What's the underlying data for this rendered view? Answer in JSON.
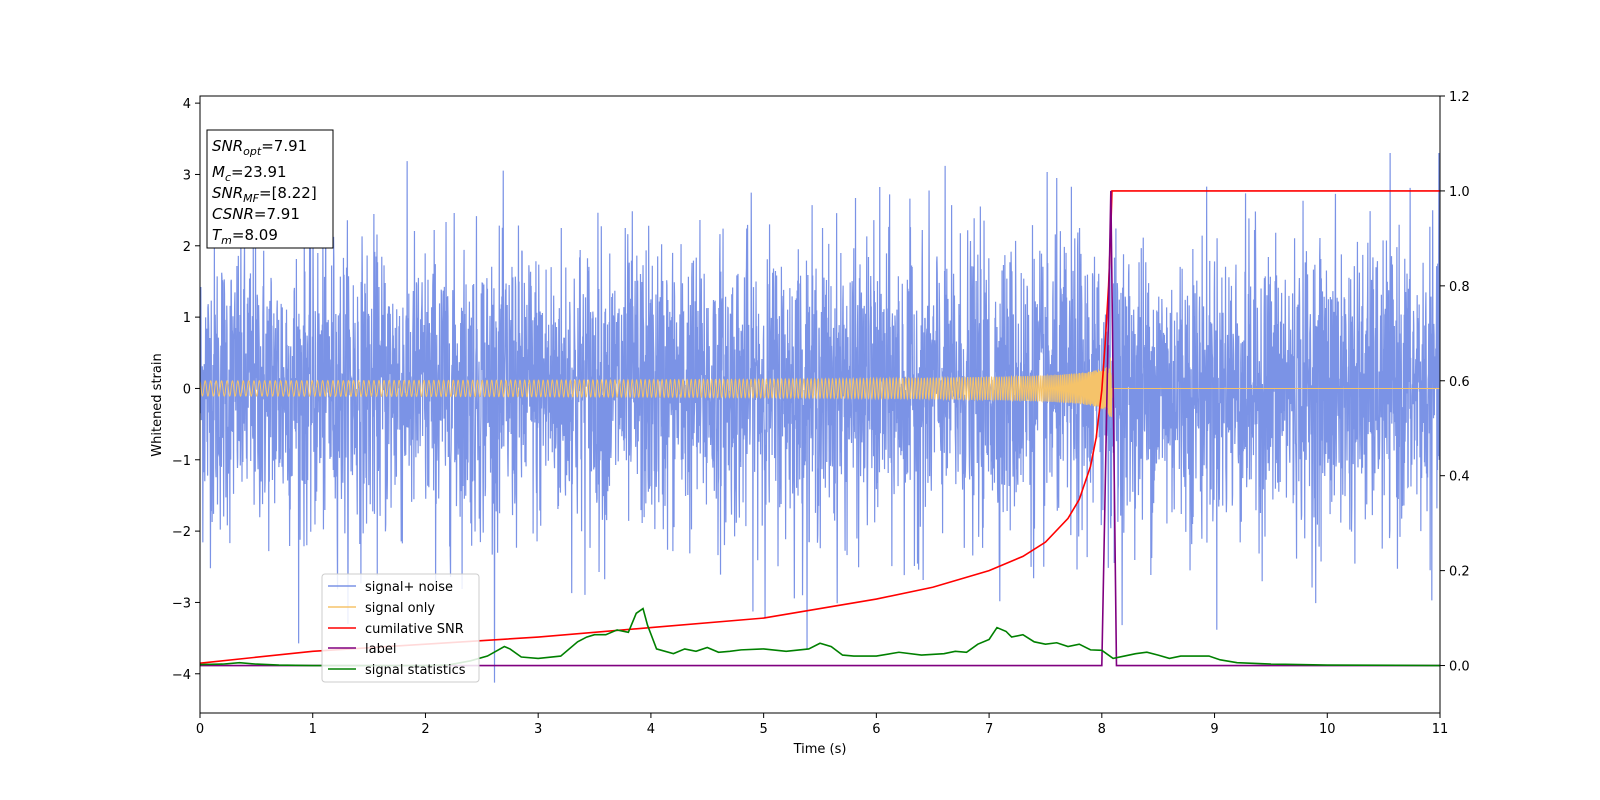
{
  "chart_data": {
    "type": "line",
    "xlabel": "Time (s)",
    "ylabel": "Whitened strain",
    "xlim": [
      0,
      11
    ],
    "ylim_left": [
      -4.55,
      4.1
    ],
    "ylim_right": [
      -0.1,
      1.2
    ],
    "grid": false,
    "legend_placement": "lower-left",
    "x_ticks": [
      "0",
      "1",
      "2",
      "3",
      "4",
      "5",
      "6",
      "7",
      "8",
      "9",
      "10",
      "11"
    ],
    "y_ticks_left": [
      "−4",
      "−3",
      "−2",
      "−1",
      "0",
      "1",
      "2",
      "3",
      "4"
    ],
    "y_ticks_right": [
      "0.0",
      "0.2",
      "0.4",
      "0.6",
      "0.8",
      "1.0",
      "1.2"
    ],
    "annotation": {
      "snr_opt": {
        "base": "SNR",
        "sub": "opt",
        "value": "=7.91"
      },
      "mc": {
        "base": "M",
        "sub": "c",
        "value": "=23.91"
      },
      "snr_mf": {
        "base": "SNR",
        "sub": "MF",
        "value": "=[8.22]"
      },
      "csnr": {
        "base": "CSNR",
        "value": "=7.91"
      },
      "tm": {
        "base": "T",
        "sub": "m",
        "value": "=8.09"
      }
    },
    "series": [
      {
        "name": "signal+ noise",
        "axis": "left",
        "color": "#7b93e6",
        "description_points": {
          "x_range": [
            0,
            11
          ],
          "noise_std": 1.0,
          "max_peak": 3.35,
          "min_peak": -4.15
        }
      },
      {
        "name": "signal only",
        "axis": "left",
        "color": "#f5c36a",
        "chirp": {
          "t_merge": 8.09,
          "amp_end": 0.6,
          "amp_start": 0.02
        }
      },
      {
        "name": "cumilative SNR",
        "axis": "right",
        "color": "#ff0000",
        "x": [
          0,
          1,
          2,
          3,
          4,
          5,
          6,
          6.5,
          7,
          7.3,
          7.5,
          7.7,
          7.8,
          7.9,
          7.95,
          8.0,
          8.03,
          8.06,
          8.08,
          8.09,
          11
        ],
        "y": [
          0.005,
          0.03,
          0.045,
          0.06,
          0.08,
          0.1,
          0.14,
          0.165,
          0.2,
          0.23,
          0.26,
          0.31,
          0.35,
          0.42,
          0.48,
          0.58,
          0.68,
          0.8,
          0.92,
          1.0,
          1.0
        ]
      },
      {
        "name": "label",
        "axis": "right",
        "color": "#800080",
        "x": [
          0,
          8.0,
          8.08,
          8.13,
          11
        ],
        "y": [
          0.0,
          0.0,
          1.0,
          0.0,
          0.0
        ]
      },
      {
        "name": "signal statistics",
        "axis": "right",
        "color": "#008000",
        "x": [
          0,
          0.2,
          0.35,
          0.5,
          0.7,
          1,
          1.5,
          2,
          2.2,
          2.4,
          2.55,
          2.7,
          2.75,
          2.85,
          3.0,
          3.2,
          3.35,
          3.43,
          3.5,
          3.6,
          3.7,
          3.8,
          3.87,
          3.93,
          3.97,
          4.05,
          4.2,
          4.3,
          4.4,
          4.5,
          4.6,
          4.7,
          4.8,
          5.0,
          5.2,
          5.4,
          5.5,
          5.6,
          5.7,
          5.8,
          6.0,
          6.2,
          6.4,
          6.6,
          6.7,
          6.8,
          6.9,
          7.0,
          7.07,
          7.15,
          7.2,
          7.3,
          7.4,
          7.5,
          7.6,
          7.7,
          7.8,
          7.9,
          8.0,
          8.1,
          8.2,
          8.3,
          8.4,
          8.5,
          8.6,
          8.7,
          8.8,
          8.95,
          9.05,
          9.2,
          9.5,
          10,
          11
        ],
        "y": [
          0.002,
          0.003,
          0.006,
          0.003,
          0.001,
          0.0,
          0.0,
          0.0,
          0.001,
          0.01,
          0.02,
          0.04,
          0.035,
          0.018,
          0.015,
          0.02,
          0.05,
          0.06,
          0.065,
          0.065,
          0.075,
          0.07,
          0.11,
          0.12,
          0.085,
          0.035,
          0.025,
          0.035,
          0.03,
          0.038,
          0.028,
          0.03,
          0.033,
          0.035,
          0.03,
          0.035,
          0.047,
          0.04,
          0.022,
          0.02,
          0.02,
          0.028,
          0.022,
          0.025,
          0.03,
          0.028,
          0.045,
          0.055,
          0.08,
          0.072,
          0.06,
          0.065,
          0.05,
          0.045,
          0.048,
          0.04,
          0.045,
          0.033,
          0.032,
          0.015,
          0.02,
          0.025,
          0.028,
          0.022,
          0.015,
          0.02,
          0.02,
          0.02,
          0.012,
          0.006,
          0.003,
          0.001,
          0.0
        ]
      }
    ]
  }
}
